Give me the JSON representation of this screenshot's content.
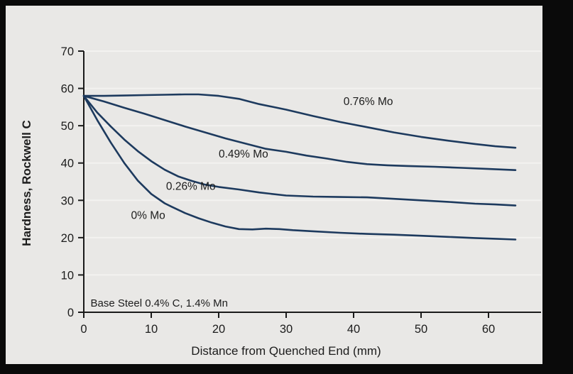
{
  "frame": {
    "border_color": "#0a0a0a",
    "panel_bg": "#e9e8e6"
  },
  "chart_data": {
    "type": "line",
    "title": "",
    "xlabel": "Distance from Quenched End (mm)",
    "ylabel": "Hardness, Rockwell C",
    "xlim": [
      0,
      68
    ],
    "ylim": [
      0,
      70
    ],
    "x_ticks": [
      0,
      10,
      20,
      30,
      40,
      50,
      60
    ],
    "y_ticks": [
      0,
      10,
      20,
      30,
      40,
      50,
      60,
      70
    ],
    "grid": "horizontal",
    "legend": "inline-labels",
    "line_color": "#1d3a5e",
    "grid_color": "#f3f2f0",
    "axis_color": "#1a1a1a",
    "annotation": "Base Steel 0.4% C, 1.4% Mn",
    "annotation_pos": {
      "x": 1,
      "y": 1.5
    },
    "series": [
      {
        "name": "0.76% Mo",
        "label": "0.76% Mo",
        "label_pos": {
          "x": 38.5,
          "y": 55.5
        },
        "points": [
          [
            0,
            58
          ],
          [
            3,
            58
          ],
          [
            6,
            58.1
          ],
          [
            9,
            58.2
          ],
          [
            12,
            58.3
          ],
          [
            15,
            58.4
          ],
          [
            17,
            58.4
          ],
          [
            20,
            58
          ],
          [
            23,
            57.2
          ],
          [
            26,
            55.8
          ],
          [
            30,
            54.3
          ],
          [
            34,
            52.6
          ],
          [
            38,
            51
          ],
          [
            42,
            49.6
          ],
          [
            46,
            48.2
          ],
          [
            50,
            47
          ],
          [
            54,
            46
          ],
          [
            58,
            45.1
          ],
          [
            61,
            44.5
          ],
          [
            64,
            44.1
          ]
        ]
      },
      {
        "name": "0.49% Mo",
        "label": "0.49% Mo",
        "label_pos": {
          "x": 20,
          "y": 41.5
        },
        "points": [
          [
            0,
            58
          ],
          [
            3,
            56.5
          ],
          [
            6,
            54.8
          ],
          [
            9,
            53.2
          ],
          [
            12,
            51.5
          ],
          [
            15,
            49.8
          ],
          [
            18,
            48.2
          ],
          [
            21,
            46.6
          ],
          [
            24,
            45.2
          ],
          [
            27,
            43.8
          ],
          [
            30,
            43
          ],
          [
            33,
            42
          ],
          [
            36,
            41.2
          ],
          [
            39,
            40.3
          ],
          [
            42,
            39.7
          ],
          [
            45,
            39.4
          ],
          [
            48,
            39.2
          ],
          [
            52,
            39
          ],
          [
            56,
            38.7
          ],
          [
            60,
            38.4
          ],
          [
            64,
            38.1
          ]
        ]
      },
      {
        "name": "0.26% Mo",
        "label": "0.26% Mo",
        "label_pos": {
          "x": 12.2,
          "y": 32.8
        },
        "points": [
          [
            0,
            58
          ],
          [
            2,
            53.5
          ],
          [
            4,
            49.8
          ],
          [
            6,
            46.3
          ],
          [
            8,
            43.2
          ],
          [
            10,
            40.5
          ],
          [
            12,
            38.2
          ],
          [
            14,
            36.4
          ],
          [
            16,
            35.2
          ],
          [
            18,
            34.2
          ],
          [
            20,
            33.6
          ],
          [
            23,
            32.9
          ],
          [
            26,
            32.1
          ],
          [
            30,
            31.3
          ],
          [
            34,
            31
          ],
          [
            38,
            30.9
          ],
          [
            42,
            30.8
          ],
          [
            46,
            30.4
          ],
          [
            50,
            30
          ],
          [
            54,
            29.6
          ],
          [
            58,
            29.1
          ],
          [
            61,
            28.9
          ],
          [
            64,
            28.6
          ]
        ]
      },
      {
        "name": "0% Mo",
        "label": "0% Mo",
        "label_pos": {
          "x": 7,
          "y": 25
        },
        "points": [
          [
            0,
            58
          ],
          [
            2,
            51.5
          ],
          [
            4,
            45.5
          ],
          [
            6,
            40
          ],
          [
            8,
            35.3
          ],
          [
            10,
            31.7
          ],
          [
            12,
            29.2
          ],
          [
            13,
            28.3
          ],
          [
            15,
            26.6
          ],
          [
            17,
            25.2
          ],
          [
            19,
            24
          ],
          [
            21,
            23
          ],
          [
            23,
            22.3
          ],
          [
            25,
            22.2
          ],
          [
            27,
            22.4
          ],
          [
            29,
            22.3
          ],
          [
            31,
            22
          ],
          [
            34,
            21.7
          ],
          [
            38,
            21.3
          ],
          [
            42,
            21
          ],
          [
            46,
            20.8
          ],
          [
            50,
            20.5
          ],
          [
            54,
            20.2
          ],
          [
            58,
            19.9
          ],
          [
            61,
            19.7
          ],
          [
            64,
            19.5
          ]
        ]
      }
    ]
  }
}
